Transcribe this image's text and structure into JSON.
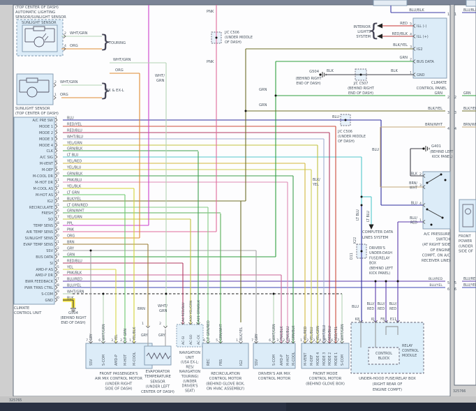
{
  "page": {
    "left_number": "325765",
    "right_number": "325766"
  },
  "colors": {
    "BLU": "#2d2d9e",
    "RED/YEL": "#cc4a3a",
    "RED/BLU": "#b23a62",
    "WHT/BLU": "#9fb0d0",
    "YEL/GRN": "#c2c23e",
    "GRN/BLK": "#3f9f4f",
    "LT BLU": "#52c8cc",
    "YEL/RED": "#d4b83c",
    "YEL/BLU": "#cece52",
    "PNK/BLU": "#de8ab4",
    "YEL/BLK": "#d2d236",
    "LT GRN": "#6cc86c",
    "BLK/YEL": "#6e6e28",
    "LT GRN/RED": "#84cc84",
    "GRN/WHT": "#58b058",
    "PPL": "#cc3ecc",
    "PNK": "#e06a9a",
    "ORG": "#e08a32",
    "BRN": "#9a7c34",
    "GRY": "#a2a2a2",
    "GRN": "#2f9f3f",
    "YEL": "#d8d846",
    "PNK/BLK": "#cc6496",
    "BLU/RED": "#5a3aaa",
    "BLU/YEL": "#3a46b4",
    "WHT/GRN": "#b4d2b4",
    "BLK": "#3c3c44",
    "BLU/BLK": "#3a3aa6",
    "RED": "#c83232",
    "RED/BLK": "#b43c3c",
    "BRN/WHT": "#c2a878",
    "HILITE": "#f4e23a"
  },
  "top_left_note": [
    "(TOP CENTER OF DASH)",
    "AUTOMATIC LIGHTING",
    "SENSOR/SUNLIGHT SENSOR"
  ],
  "sunlight1": {
    "title": "SUNLIGHT SENSOR",
    "tag": "TOURING",
    "pins": [
      {
        "n": "2",
        "wire": "WHT/GRN"
      },
      {
        "n": "4",
        "wire": "ORG"
      }
    ]
  },
  "sunlight2": {
    "tag": "EX & EX-L",
    "caption": [
      "SUNLIGHT SENSOR",
      "(TOP CENTER OF DASH)"
    ],
    "pins": [
      {
        "n": "2",
        "wire": "WHT/GRN"
      },
      {
        "n": "1",
        "wire": "ORG"
      }
    ]
  },
  "junction_labels": {
    "wht_grn": "WHT/GRN",
    "org": "ORG",
    "wht_stack": [
      "WHT/",
      "GRN"
    ],
    "pnk_top": "PNK",
    "pnk_mid": "PNK",
    "grn_a": "GRN",
    "grn_b": "GRN",
    "blu_a": "BLU",
    "blu_b": "BLU",
    "blk_a": "BLK",
    "blk_b": "BLK",
    "blkyel_stack": [
      "BLK/",
      "YEL"
    ],
    "ltblu": "LT BLU",
    "k22": "K22",
    "d11": "D11",
    "brn": "BRN",
    "whtgrn_evap": [
      "WHT/",
      "GRN"
    ],
    "gry_a": "GRY",
    "gry_b": "GRY"
  },
  "jc506_top": [
    "J/C C506",
    "(UNDER MIDDLE",
    "OF DASH)"
  ],
  "jc507": [
    "J/C C507",
    "(BEHIND RIGHT",
    "END OF DASH)"
  ],
  "jc506_mid": [
    "J/C C506",
    "(UNDER MIDDLE",
    "OF DASH)"
  ],
  "g504_top": [
    "G504",
    "(BEHIND RIGHT",
    "END OF DASH)"
  ],
  "g504_bottom": [
    "G504",
    "(BEHIND RIGHT",
    "END OF DASH)"
  ],
  "g401": [
    "G401",
    "(BEHIND LEFT",
    "KICK PANEL)"
  ],
  "interior_lights": [
    "INTERIOR",
    "LIGHTS",
    "SYSTEM"
  ],
  "computer_data": [
    "COMPUTER DATA",
    "LINES SYSTEM"
  ],
  "under_dash_box": [
    "DRIVER'S",
    "UNDER-DASH",
    "FUSE/RELAY",
    "BOX",
    "(BEHIND LEFT",
    "KICK PANEL)"
  ],
  "climate_unit": {
    "caption": [
      "CLIMATE",
      "CONTROL UNIT"
    ],
    "pins": [
      {
        "n": "1",
        "label": "A/C PRE SW",
        "wire": "BLU"
      },
      {
        "n": "2",
        "label": "MODE 1",
        "wire": "RED/YEL"
      },
      {
        "n": "3",
        "label": "MODE 2",
        "wire": "RED/BLU"
      },
      {
        "n": "4",
        "label": "MODE 3",
        "wire": "WHT/BLU"
      },
      {
        "n": "5",
        "label": "MODE 4",
        "wire": "YEL/GRN"
      },
      {
        "n": "6",
        "label": "CLK",
        "wire": "GRN/BLK"
      },
      {
        "n": "7",
        "label": "A/C SIG",
        "wire": "LT BLU"
      },
      {
        "n": "8",
        "label": "M-VENT",
        "wire": "YEL/RED"
      },
      {
        "n": "9",
        "label": "M-DEF",
        "wire": "YEL/BLU"
      },
      {
        "n": "10",
        "label": "M-COOL DR",
        "wire": "GRN/BLK"
      },
      {
        "n": "11",
        "label": "M-HOT DR",
        "wire": "PNK/BLU"
      },
      {
        "n": "12",
        "label": "M-COOL AS",
        "wire": "YEL/BLK"
      },
      {
        "n": "13",
        "label": "M-HOT AS",
        "wire": "LT GRN"
      },
      {
        "n": "14",
        "label": "IG2",
        "wire": "BLK/YEL"
      },
      {
        "n": "15",
        "label": "RECIRCULATE",
        "wire": "LT GRN/RED"
      },
      {
        "n": "16",
        "label": "FRESH",
        "wire": "GRN/WHT"
      },
      {
        "n": "17",
        "label": "SO",
        "wire": "YEL/GRN"
      },
      {
        "n": "18",
        "label": "TEMP SENS",
        "wire": "PPL"
      },
      {
        "n": "19",
        "label": "AIR TEMP SENS",
        "wire": "PNK"
      },
      {
        "n": "20",
        "label": "SUNLIGHT SENS",
        "wire": "ORG"
      },
      {
        "n": "21",
        "label": "EVAP TEMP SENS",
        "wire": "BRN"
      },
      {
        "n": "22",
        "label": "SSV",
        "wire": "GRY"
      },
      {
        "n": "23",
        "label": "BUS DATA",
        "wire": "GRN"
      },
      {
        "n": "24",
        "label": "SI",
        "wire": "RED/BLU"
      },
      {
        "n": "25",
        "label": "AMD-P AS",
        "wire": "YEL"
      },
      {
        "n": "26",
        "label": "AMD-P DR",
        "wire": "PNK/BLK"
      },
      {
        "n": "27",
        "label": "BWR FEEDBACK",
        "wire": "BLU/RED"
      },
      {
        "n": "28",
        "label": "PWR TRNS CTRL",
        "wire": "BLU/YEL"
      },
      {
        "n": "29",
        "label": "S-COM",
        "wire": "WHT/GRN"
      },
      {
        "n": "30",
        "label": "GND",
        "wire": "BLK"
      }
    ]
  },
  "climate_panel": {
    "caption": [
      "CLIMATE",
      "CONTROL PANEL"
    ],
    "pins": [
      {
        "n": "5",
        "label": "ILL (-)",
        "wire": "RED"
      },
      {
        "n": "4",
        "label": "ILL (+)",
        "wire": "RED/BLK"
      },
      {
        "n": "3",
        "label": "IG2",
        "wire": "BLK/YEL"
      },
      {
        "n": "2",
        "label": "BUS DATA",
        "wire": "GRN"
      },
      {
        "n": "1",
        "label": "GND",
        "wire": "BLK"
      }
    ]
  },
  "edge": [
    {
      "n": "1",
      "wire": "BLU/BLK"
    },
    {
      "n": "2",
      "wire": "GRN"
    },
    {
      "n": "3",
      "wire": "BLK/YEL"
    },
    {
      "n": "4",
      "wire": "BRN/WHT"
    },
    {
      "n": "5",
      "wire": "BLU/RED"
    },
    {
      "n": "6",
      "wire": "BLU/YEL"
    }
  ],
  "ac_switch": {
    "caption": [
      "A/C PRESSURE",
      "SWITCH",
      "(AT RIGHT SIDE",
      "OF ENGINE",
      "COMPT, ON A/C",
      "RECEIVER LINE)"
    ],
    "pins": [
      {
        "n": "2",
        "wire": "BLK"
      },
      {
        "n": "3",
        "wire": "BRN/WHT"
      },
      {
        "n": "4",
        "wire": "BLU"
      },
      {
        "n": "1",
        "wire": "BLU/RED"
      }
    ]
  },
  "underhood": {
    "caption": [
      "UNDER-HOOD FUSE/RELAY BOX",
      "(RIGHT REAR OF",
      "ENGINE COMPT)"
    ],
    "relay": [
      "RELAY",
      "CONTROL",
      "MODULE"
    ],
    "block": [
      "CONTROL",
      "BLOCK"
    ],
    "pins": [
      "K8",
      "I0",
      "F8",
      "E11"
    ],
    "wires": [
      "BLU",
      "BLU/RED",
      "BLU/RED",
      "BLU/RED"
    ]
  },
  "motors": {
    "passenger": {
      "caption": [
        "FRONT PASSENGER'S",
        "AIR MIX CONTROL MOTOR",
        "(UNDER RIGHT",
        "SIDE OF DASH)"
      ],
      "pins": [
        {
          "n": "7",
          "name": "SSV",
          "wire": "GRY"
        },
        {
          "n": "6",
          "name": "S-COM",
          "wire": "WHT/GRN"
        },
        {
          "n": "3",
          "name": "AMD-P",
          "wire": "YEL"
        },
        {
          "n": "2",
          "name": "M-HOT",
          "wire": "LT GRN"
        },
        {
          "n": "1",
          "name": "M-COOL",
          "wire": "YEL/BLK"
        }
      ]
    },
    "driver": {
      "caption": [
        "DRIVER'S AIR MIX",
        "CONTROL MOTOR"
      ],
      "pins": [
        {
          "n": "7",
          "name": "SSV",
          "wire": "GRY"
        },
        {
          "n": "6",
          "name": "S-COM",
          "wire": "WHT/GRN"
        },
        {
          "n": "3",
          "name": "AMD-P",
          "wire": "PNK/BLK"
        },
        {
          "n": "2",
          "name": "M-HOT",
          "wire": "PNK/BLU"
        },
        {
          "n": "1",
          "name": "M-COOL",
          "wire": "GRN/BLK"
        }
      ]
    },
    "front_mode": {
      "caption": [
        "FRONT MODE",
        "CONTROL MOTOR",
        "(BEHIND GLOVE BOX)"
      ],
      "pins": [
        {
          "n": "1",
          "name": "M-VENT",
          "wire": "YEL/RED"
        },
        {
          "n": "2",
          "name": "M-DEF",
          "wire": "YEL/BLU"
        },
        {
          "n": "3",
          "name": "MODE 4",
          "wire": "YEL/GRN"
        },
        {
          "n": "4",
          "name": "MODE 3",
          "wire": "WHT/BLU"
        },
        {
          "n": "5",
          "name": "MODE 2",
          "wire": "RED/BLU"
        },
        {
          "n": "6",
          "name": "MODE 1",
          "wire": "RED/YEL"
        },
        {
          "n": "7",
          "name": "S-COM",
          "wire": "WHT/GRN"
        }
      ]
    },
    "recirc": {
      "caption": [
        "RECIRCULATION",
        "CONTROL MOTOR",
        "(BEHIND GLOVE BOX,",
        "ON HVAC ASSEMBLY)"
      ],
      "pins": [
        {
          "n": "6",
          "name": "REC",
          "wire": "LT GRN/RED"
        },
        {
          "n": "5",
          "name": "FRS",
          "wire": "GRN/WHT"
        },
        {
          "n": "1",
          "name": "IG2",
          "wire": "BLK/YEL"
        }
      ]
    }
  },
  "nav": {
    "caption": [
      "NAVIGATION",
      "UNIT",
      "(USA EX-L:",
      "RES/",
      "NAVIGATION",
      "TOURING)",
      "(UNDER",
      "DRIVER'S",
      "SEAT)"
    ],
    "pins": [
      {
        "id": "A4",
        "name": "AC-SI",
        "wire": "RED/BLU"
      },
      {
        "id": "A30",
        "name": "AC-SO",
        "wire": "YEL/GRN"
      },
      {
        "id": "A21",
        "name": "AC-CK",
        "wire": "GRN/BLK"
      }
    ]
  },
  "evap": {
    "caption": [
      "EVAPORATOR",
      "TEMPERATURE",
      "SENSOR",
      "(UNDER LEFT",
      "CENTER OF DASH)"
    ],
    "pins": [
      {
        "n": "1",
        "wire": "BRN"
      },
      {
        "n": "2",
        "wire": "WHT/GRN"
      }
    ],
    "stub_wire": "GRY"
  },
  "right_page": {
    "caption": [
      "FRONT",
      "POWER",
      "(UNDER",
      "SIDE OF"
    ]
  }
}
